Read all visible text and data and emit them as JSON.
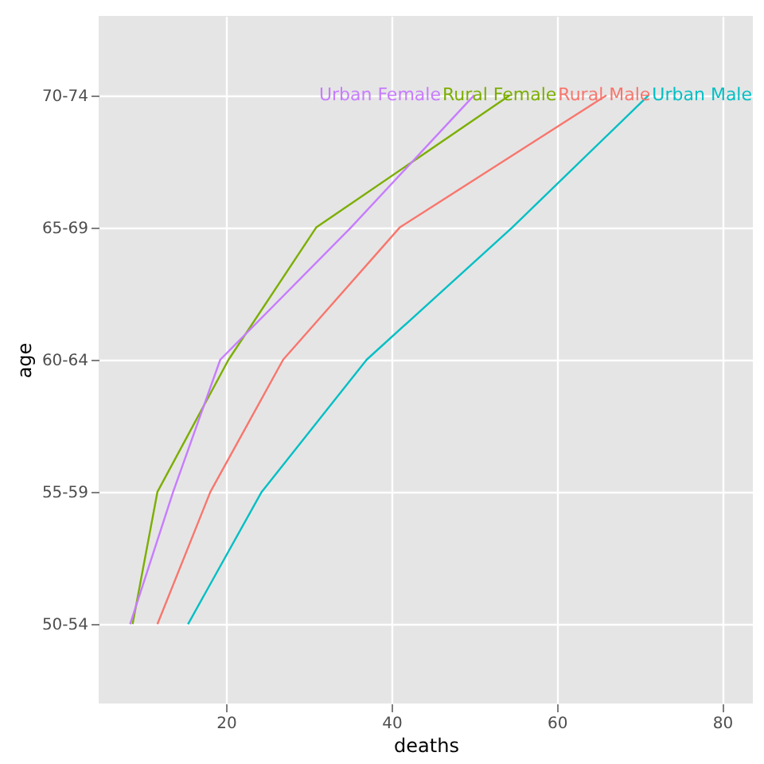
{
  "chart_data": {
    "type": "line",
    "orientation": "horizontal",
    "xlabel": "deaths",
    "ylabel": "age",
    "categories": [
      "70-74",
      "65-69",
      "60-64",
      "55-59",
      "50-54"
    ],
    "series": [
      {
        "name": "Rural Male",
        "color": "#f8766d",
        "values": [
          66.0,
          41.0,
          26.9,
          18.1,
          11.7
        ]
      },
      {
        "name": "Rural Female",
        "color": "#7cae00",
        "values": [
          54.3,
          30.9,
          20.3,
          11.7,
          8.7
        ]
      },
      {
        "name": "Urban Male",
        "color": "#00bfc4",
        "values": [
          71.1,
          54.6,
          37.0,
          24.3,
          15.4
        ]
      },
      {
        "name": "Urban Female",
        "color": "#c77cff",
        "values": [
          50.0,
          35.1,
          19.3,
          13.6,
          8.4
        ]
      }
    ],
    "xlim": [
      4.6,
      83.7
    ],
    "xticks": [
      20,
      40,
      60,
      80
    ],
    "grid": true,
    "legend": false
  }
}
